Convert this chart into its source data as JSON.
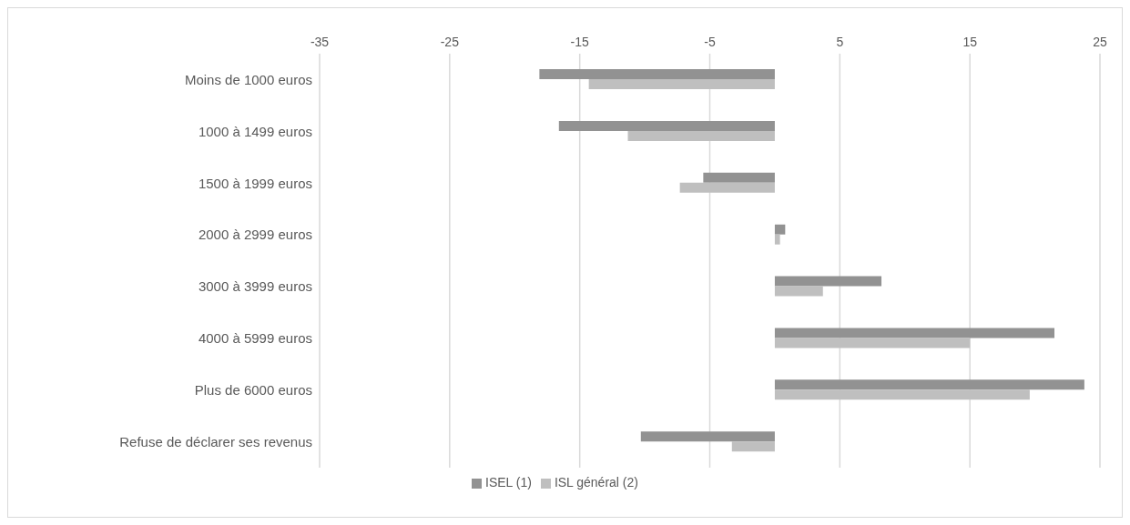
{
  "chart_data": {
    "type": "bar",
    "orientation": "horizontal",
    "categories": [
      "Moins de 1000 euros",
      "1000 à 1499 euros",
      "1500 à 1999 euros",
      "2000 à 2999 euros",
      "3000 à 3999 euros",
      "4000 à 5999 euros",
      "Plus de 6000 euros",
      "Refuse de déclarer ses revenus"
    ],
    "series": [
      {
        "name": "ISEL (1)",
        "color": "#929292",
        "values": [
          -18.1,
          -16.6,
          -5.5,
          0.8,
          8.2,
          21.5,
          23.8,
          -10.3
        ]
      },
      {
        "name": "ISL général (2)",
        "color": "#bfbfbf",
        "values": [
          -14.3,
          -11.3,
          -7.3,
          0.4,
          3.7,
          15.0,
          19.6,
          -3.3
        ]
      }
    ],
    "xlim": [
      -35,
      25
    ],
    "xticks": [
      -35,
      -25,
      -15,
      -5,
      5,
      15,
      25
    ],
    "grid": "x",
    "legend": "bottom"
  }
}
